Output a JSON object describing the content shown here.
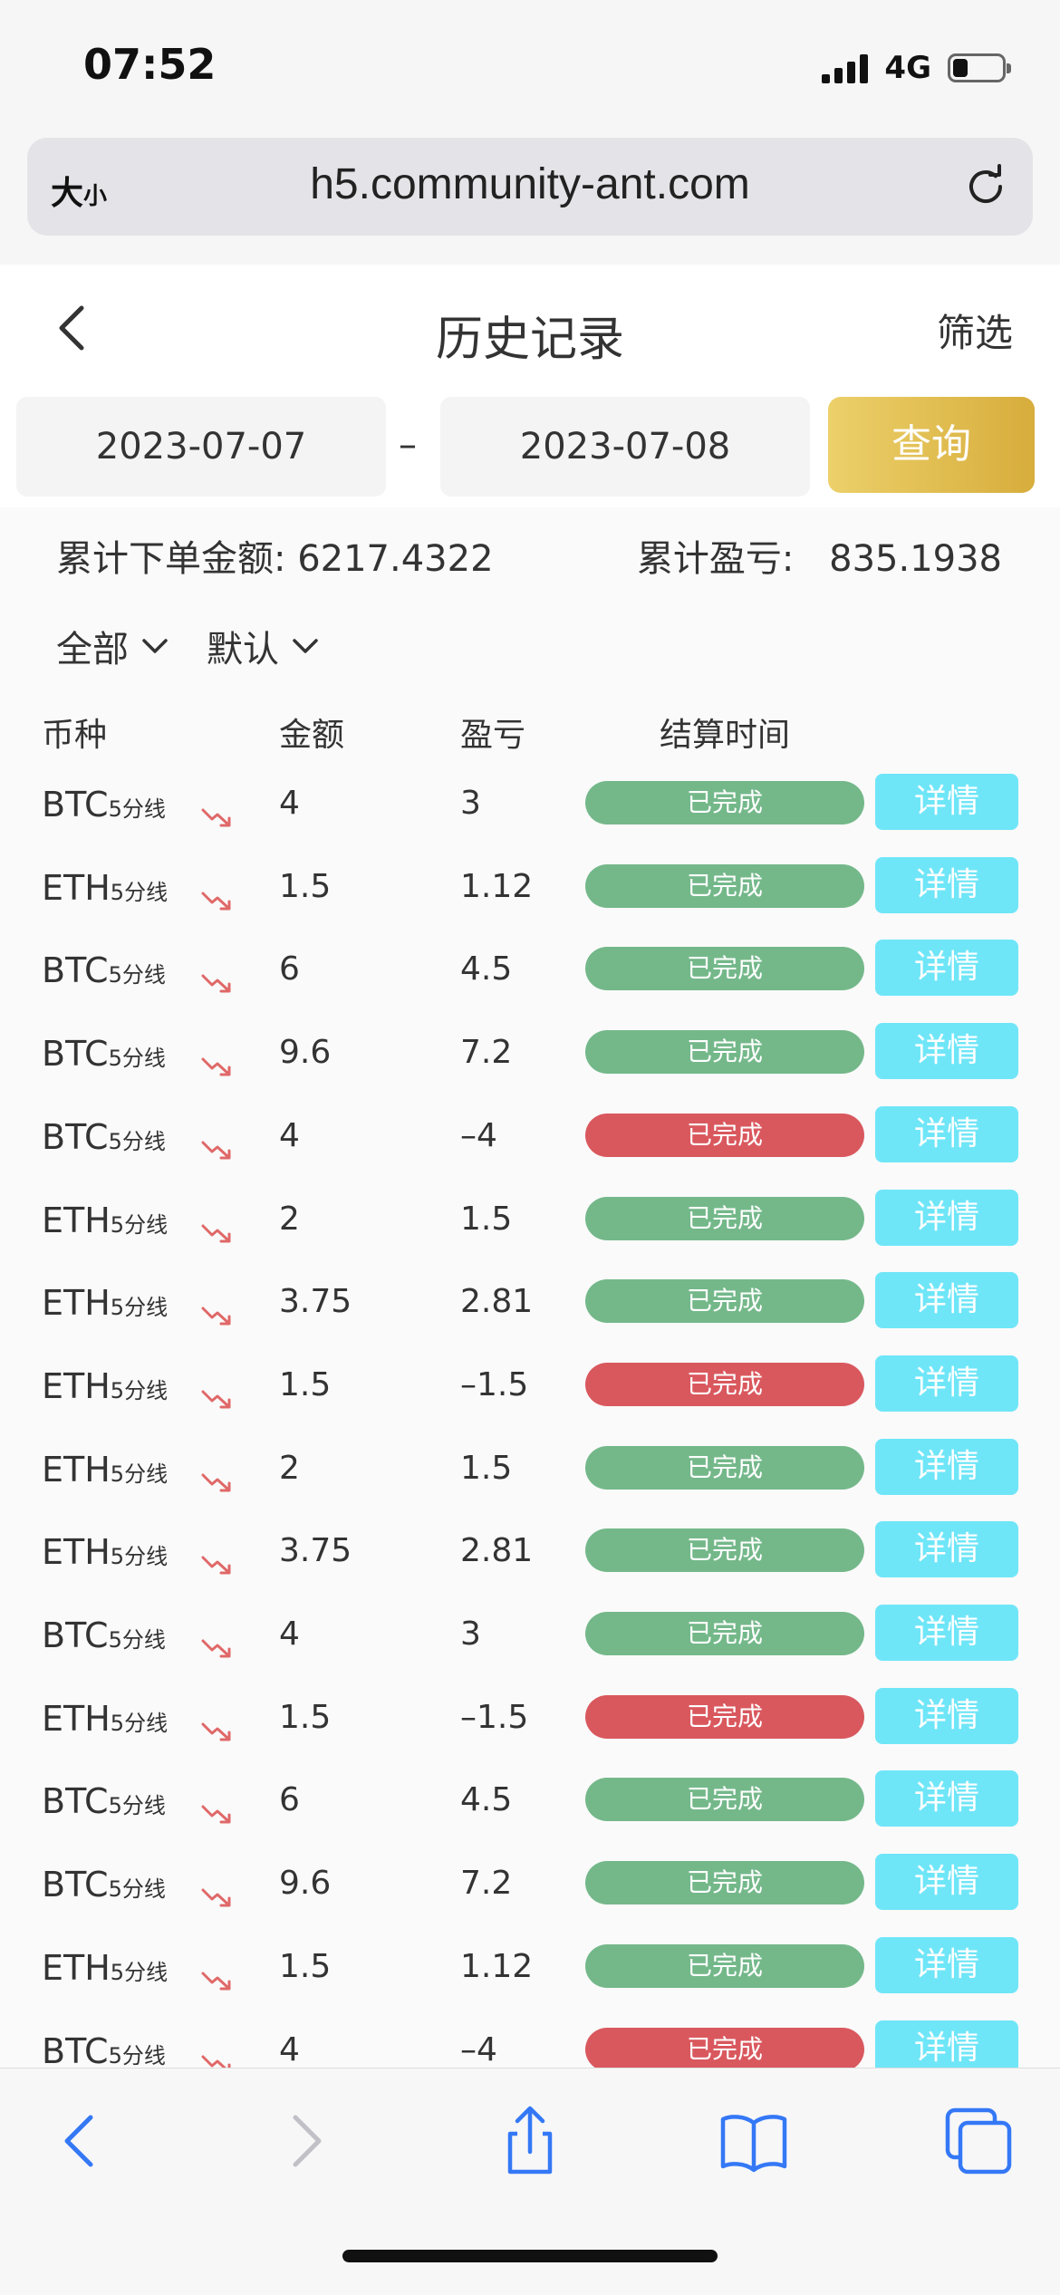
{
  "status_bar": {
    "time": "07:52",
    "network": "4G",
    "battery_level": 0.3
  },
  "address_bar": {
    "text_size_label": "大",
    "text_size_small": "小",
    "url": "h5.community-ant.com"
  },
  "header": {
    "title": "历史记录",
    "filter_label": "筛选"
  },
  "date_range": {
    "start": "2023-07-07",
    "separator": "–",
    "end": "2023-07-08",
    "query_label": "查询"
  },
  "summary": {
    "total_order_label": "累计下单金额:",
    "total_order_value": "6217.4322",
    "total_pl_label": "累计盈亏:",
    "total_pl_value": "835.1938"
  },
  "dropdowns": {
    "scope": "全部",
    "sort": "默认"
  },
  "table": {
    "headers": {
      "coin": "币种",
      "amount": "金额",
      "pl": "盈亏",
      "settle_time": "结算时间"
    },
    "rows": [
      {
        "coin": "BTC",
        "period": "5分线",
        "amount": "4",
        "pl": "3",
        "status": "已完成",
        "win": true,
        "detail": "详情"
      },
      {
        "coin": "ETH",
        "period": "5分线",
        "amount": "1.5",
        "pl": "1.12",
        "status": "已完成",
        "win": true,
        "detail": "详情"
      },
      {
        "coin": "BTC",
        "period": "5分线",
        "amount": "6",
        "pl": "4.5",
        "status": "已完成",
        "win": true,
        "detail": "详情"
      },
      {
        "coin": "BTC",
        "period": "5分线",
        "amount": "9.6",
        "pl": "7.2",
        "status": "已完成",
        "win": true,
        "detail": "详情"
      },
      {
        "coin": "BTC",
        "period": "5分线",
        "amount": "4",
        "pl": "–4",
        "status": "已完成",
        "win": false,
        "detail": "详情"
      },
      {
        "coin": "ETH",
        "period": "5分线",
        "amount": "2",
        "pl": "1.5",
        "status": "已完成",
        "win": true,
        "detail": "详情"
      },
      {
        "coin": "ETH",
        "period": "5分线",
        "amount": "3.75",
        "pl": "2.81",
        "status": "已完成",
        "win": true,
        "detail": "详情"
      },
      {
        "coin": "ETH",
        "period": "5分线",
        "amount": "1.5",
        "pl": "–1.5",
        "status": "已完成",
        "win": false,
        "detail": "详情"
      },
      {
        "coin": "ETH",
        "period": "5分线",
        "amount": "2",
        "pl": "1.5",
        "status": "已完成",
        "win": true,
        "detail": "详情"
      },
      {
        "coin": "ETH",
        "period": "5分线",
        "amount": "3.75",
        "pl": "2.81",
        "status": "已完成",
        "win": true,
        "detail": "详情"
      },
      {
        "coin": "BTC",
        "period": "5分线",
        "amount": "4",
        "pl": "3",
        "status": "已完成",
        "win": true,
        "detail": "详情"
      },
      {
        "coin": "ETH",
        "period": "5分线",
        "amount": "1.5",
        "pl": "–1.5",
        "status": "已完成",
        "win": false,
        "detail": "详情"
      },
      {
        "coin": "BTC",
        "period": "5分线",
        "amount": "6",
        "pl": "4.5",
        "status": "已完成",
        "win": true,
        "detail": "详情"
      },
      {
        "coin": "BTC",
        "period": "5分线",
        "amount": "9.6",
        "pl": "7.2",
        "status": "已完成",
        "win": true,
        "detail": "详情"
      },
      {
        "coin": "ETH",
        "period": "5分线",
        "amount": "1.5",
        "pl": "1.12",
        "status": "已完成",
        "win": true,
        "detail": "详情"
      },
      {
        "coin": "BTC",
        "period": "5分线",
        "amount": "4",
        "pl": "–4",
        "status": "已完成",
        "win": false,
        "detail": "详情"
      }
    ]
  },
  "colors": {
    "win": "#74b88a",
    "loss": "#d9585e",
    "detail": "#6fe6f8",
    "accent_gold": "#dcb446",
    "trend_red": "#e06868",
    "ios_blue": "#3478f6"
  },
  "icons": {
    "back": "chevron-left-icon",
    "reload": "reload-icon",
    "trend": "trend-down-icon",
    "share": "share-icon",
    "bookmarks": "book-icon",
    "tabs": "tabs-icon"
  }
}
